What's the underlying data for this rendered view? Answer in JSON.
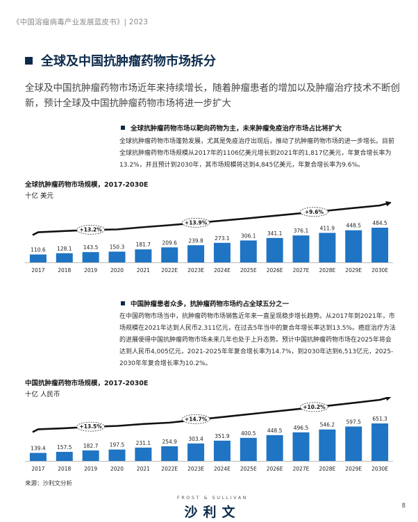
{
  "header": "《中国溶瘤病毒产业发展蓝皮书》| 2023",
  "section_title": "全球及中国抗肿瘤药物市场拆分",
  "intro": "全球及中国抗肿瘤药物市场近年来持续增长，随着肿瘤患者的增加以及肿瘤治疗技术不断创新，预计全球及中国抗肿瘤药物市场将进一步扩大",
  "global": {
    "subheading": "全球抗肿瘤药物市场以靶向药物为主，未来肿瘤免疫治疗市场占比将扩大",
    "paragraph": "全球抗肿瘤药物市场蓬勃发展，尤其是免疫治疗出现后，推动了抗肿瘤药物市场的进一步增长。目前全球抗肿瘤药物市场规模从2017年的1106亿美元增长到2021年的1,817亿美元，年复合增长率为13.2%，并且预计到2030年，其市场规模将达到4,845亿美元，年复合增长率为9.6%。",
    "chart_title": "全球抗肿瘤药物市场规模，2017-2030E",
    "unit": "十亿 美元"
  },
  "china": {
    "subheading": "中国肿瘤患者众多，抗肿瘤药物市场约占全球五分之一",
    "paragraph": "在中国药物市场当中，抗肿瘤药物市场销售近年来一直呈现稳步增长趋势。从2017年到2021年，市场规模在2021年达到人民币2,311亿元，在过去5年当中的复合年增长率达到13.5%。癌症治疗方法的进展使得中国抗肿瘤药物市场未来几年也处于上升态势。预计中国抗肿瘤药物市场在2025年将会达到人民币4,005亿元，2021-2025年年复合增长率为14.7%，到2030年达到6,513亿元，2025-2030年年复合增长率为10.2%。",
    "chart_title": "中国抗肿瘤药物市场规模，2017-2030E",
    "unit": "十亿 人民币"
  },
  "footnote": "来源：沙利文分析",
  "logo": {
    "en": "FROST & SULLIVAN",
    "cn": "沙利文"
  },
  "page_number": "8",
  "colors": {
    "bar": "#1f74c4",
    "title": "#0b2a4a",
    "arrow": "#111111"
  },
  "chart_data": [
    {
      "type": "bar",
      "categories": [
        "2017",
        "2018",
        "2019",
        "2020",
        "2021",
        "2022E",
        "2023E",
        "2024E",
        "2025E",
        "2026E",
        "2027E",
        "2028E",
        "2029E",
        "2030E"
      ],
      "values": [
        110.6,
        128.1,
        143.5,
        150.3,
        181.7,
        209.6,
        239.8,
        273.1,
        306.1,
        341.1,
        376.1,
        411.9,
        448.5,
        484.5
      ],
      "value_labels": [
        "110.6",
        "128.1",
        "143.5",
        "150.3",
        "181.7",
        "209.6",
        "239.8",
        "273.1",
        "306.1",
        "341.1",
        "376.1",
        "411.9",
        "448.5",
        "484.5"
      ],
      "annotations": [
        {
          "text": "+13.2%",
          "from": 0,
          "to": 4
        },
        {
          "text": "+13.9%",
          "from": 4,
          "to": 8
        },
        {
          "text": "+9.6%",
          "from": 8,
          "to": 13
        }
      ]
    },
    {
      "type": "bar",
      "categories": [
        "2017",
        "2018",
        "2019",
        "2020",
        "2021",
        "2022E",
        "2023E",
        "2024E",
        "2025E",
        "2026E",
        "2027E",
        "2028E",
        "2029E",
        "2030E"
      ],
      "values": [
        139.4,
        157.5,
        182.7,
        197.5,
        231.1,
        254.9,
        303.4,
        351.9,
        400.5,
        448.5,
        496.5,
        546.2,
        597.5,
        651.3
      ],
      "value_labels": [
        "139.4",
        "157.5",
        "182.7",
        "197.5",
        "231.1",
        "254.9",
        "303.4",
        "351.9",
        "400.5",
        "448.5",
        "496.5",
        "546.2",
        "597.5",
        "651.3"
      ],
      "annotations": [
        {
          "text": "+13.5%",
          "from": 0,
          "to": 4
        },
        {
          "text": "+14.7%",
          "from": 4,
          "to": 8
        },
        {
          "text": "+10.2%",
          "from": 8,
          "to": 13
        }
      ]
    }
  ]
}
